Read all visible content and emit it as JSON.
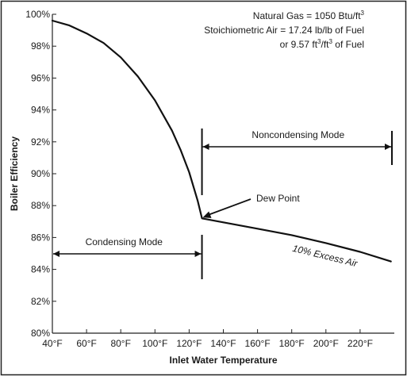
{
  "chart_data": {
    "type": "line",
    "title": "",
    "xlabel": "Inlet Water Temperature",
    "ylabel": "Boiler Efficiency",
    "xlim": [
      40,
      240
    ],
    "ylim": [
      80,
      100
    ],
    "x_ticks": [
      40,
      60,
      80,
      100,
      120,
      140,
      160,
      180,
      200,
      220
    ],
    "x_tick_labels": [
      "40°F",
      "60°F",
      "80°F",
      "100°F",
      "120°F",
      "140°F",
      "160°F",
      "180°F",
      "200°F",
      "220°F"
    ],
    "y_ticks": [
      80,
      82,
      84,
      86,
      88,
      90,
      92,
      94,
      96,
      98,
      100
    ],
    "y_tick_labels": [
      "80%",
      "82%",
      "84%",
      "86%",
      "88%",
      "90%",
      "92%",
      "94%",
      "96%",
      "98%",
      "100%"
    ],
    "grid": false,
    "series": [
      {
        "name": "10% Excess Air",
        "x": [
          40,
          50,
          60,
          70,
          80,
          90,
          100,
          110,
          115,
          120,
          125,
          127.5,
          140,
          160,
          180,
          200,
          220,
          238
        ],
        "y": [
          99.6,
          99.3,
          98.8,
          98.2,
          97.3,
          96.1,
          94.6,
          92.7,
          91.5,
          90.1,
          88.3,
          87.2,
          86.95,
          86.55,
          86.15,
          85.65,
          85.1,
          84.5
        ]
      }
    ],
    "annotations": {
      "dew_point": {
        "label": "Dew Point",
        "x": 127.5,
        "y": 87.2
      },
      "curve_label": "10% Excess Air",
      "noncondensing": {
        "label": "Noncondensing Mode",
        "x_start": 127.5,
        "x_end": 240
      },
      "condensing": {
        "label": "Condensing Mode",
        "x_start": 40,
        "x_end": 127.5
      },
      "notes": [
        {
          "prefix": "Natural Gas = 1050 Btu/ft",
          "sup": "3",
          "suffix": ""
        },
        {
          "prefix": "Stoichiometric Air = 17.24 lb/lb of Fuel",
          "sup": "",
          "suffix": ""
        },
        {
          "prefix": "or 9.57 ft",
          "sup": "3",
          "suffix": "/ft",
          "sup2": "3",
          "suffix2": " of Fuel"
        }
      ]
    }
  }
}
